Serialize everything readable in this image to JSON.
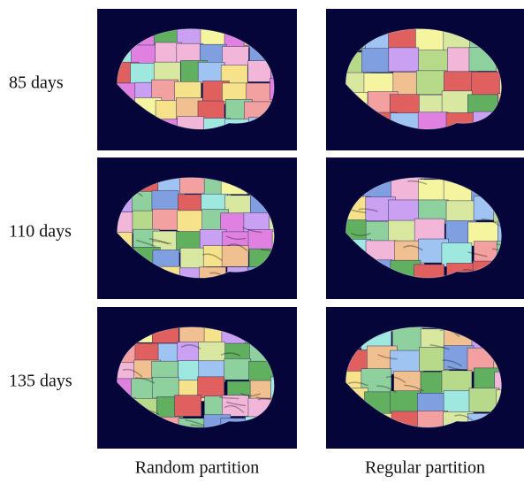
{
  "figure": {
    "rows": [
      "85 days",
      "110 days",
      "135 days"
    ],
    "columns": [
      "Random partition",
      "Regular partition"
    ]
  }
}
